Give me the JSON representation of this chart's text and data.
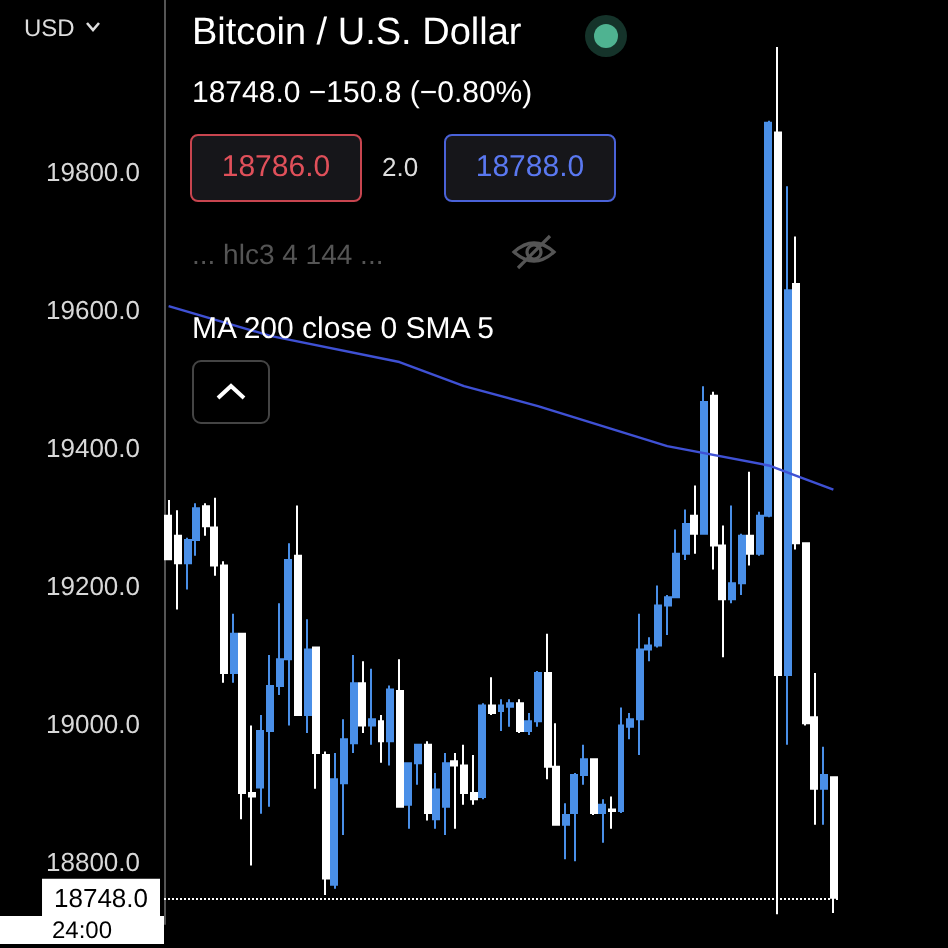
{
  "chart_data": {
    "type": "candlestick",
    "title": "Bitcoin / U.S. Dollar",
    "subtitle": "18748.0 −150.8 (−0.80%)",
    "categories": [
      null,
      null,
      null,
      null,
      null,
      null,
      null,
      null,
      null,
      null,
      null,
      null,
      null,
      null,
      null,
      null,
      null,
      null,
      null,
      null,
      null,
      null,
      null,
      null,
      null,
      null,
      null,
      null,
      null,
      null,
      null,
      null,
      null,
      null,
      null,
      null,
      null,
      null,
      null,
      null,
      null,
      null,
      null,
      null,
      null,
      null,
      null,
      null,
      null,
      null,
      null,
      null,
      null,
      null,
      null,
      null,
      null,
      null,
      null,
      null,
      null,
      null,
      null,
      null,
      null,
      null,
      null,
      null,
      null,
      null,
      null,
      null,
      null
    ],
    "ohlc": [
      [
        19302,
        19325,
        19239,
        19239
      ],
      [
        19273,
        19310,
        19166,
        19233
      ],
      [
        19233,
        19270,
        19195,
        19267
      ],
      [
        19267,
        19320,
        19244,
        19313
      ],
      [
        19316,
        19320,
        19273,
        19287
      ],
      [
        19285,
        19328,
        19215,
        19230
      ],
      [
        19230,
        19236,
        19060,
        19074
      ],
      [
        19074,
        19160,
        19060,
        19131
      ],
      [
        19131,
        19131,
        18862,
        18900
      ],
      [
        18900,
        18998,
        18795,
        18895
      ],
      [
        18908,
        19013,
        18870,
        18990
      ],
      [
        18990,
        19100,
        18880,
        19055
      ],
      [
        19055,
        19175,
        19042,
        19094
      ],
      [
        19094,
        19262,
        18998,
        19238
      ],
      [
        19244,
        19317,
        19013,
        19013
      ],
      [
        19013,
        19152,
        18987,
        19108
      ],
      [
        19111,
        19111,
        18906,
        18958
      ],
      [
        18955,
        18960,
        18752,
        18776
      ],
      [
        18767,
        18958,
        18761,
        18920
      ],
      [
        18914,
        19007,
        18839,
        18978
      ],
      [
        18972,
        19100,
        18958,
        19059
      ],
      [
        19059,
        19091,
        18987,
        18998
      ],
      [
        18998,
        19080,
        18970,
        19007
      ],
      [
        19004,
        19013,
        18944,
        18975
      ],
      [
        18975,
        19056,
        18940,
        19050
      ],
      [
        19048,
        19094,
        18880,
        18880
      ],
      [
        18883,
        18943,
        18848,
        18943
      ],
      [
        18943,
        18970,
        18912,
        18970
      ],
      [
        18970,
        18975,
        18860,
        18871
      ],
      [
        18862,
        18929,
        18848,
        18905
      ],
      [
        18880,
        18958,
        18839,
        18943
      ],
      [
        18946,
        18958,
        18848,
        18940
      ],
      [
        18940,
        18970,
        18883,
        18900
      ],
      [
        18900,
        18955,
        18883,
        18891
      ],
      [
        18894,
        19030,
        18891,
        19027
      ],
      [
        19027,
        19068,
        19013,
        19016
      ],
      [
        19019,
        19036,
        18990,
        19027
      ],
      [
        19025,
        19036,
        18996,
        19030
      ],
      [
        19030,
        19036,
        18987,
        18990
      ],
      [
        18990,
        19016,
        18984,
        19004
      ],
      [
        19004,
        19077,
        18996,
        19074
      ],
      [
        19074,
        19131,
        18920,
        18938
      ],
      [
        18938,
        19001,
        18854,
        18854
      ],
      [
        18854,
        18885,
        18804,
        18868
      ],
      [
        18871,
        18929,
        18801,
        18926
      ],
      [
        18926,
        18970,
        18912,
        18949
      ],
      [
        18949,
        18949,
        18868,
        18871
      ],
      [
        18871,
        18891,
        18828,
        18883
      ],
      [
        18876,
        18895,
        18848,
        18874
      ],
      [
        18874,
        19024,
        18871,
        18998
      ],
      [
        18996,
        19016,
        18978,
        19007
      ],
      [
        19007,
        19160,
        18955,
        19108
      ],
      [
        19108,
        19126,
        19091,
        19114
      ],
      [
        19114,
        19201,
        19111,
        19172
      ],
      [
        19172,
        19187,
        19129,
        19184
      ],
      [
        19184,
        19282,
        19184,
        19247
      ],
      [
        19247,
        19311,
        19238,
        19290
      ],
      [
        19302,
        19346,
        19247,
        19276
      ],
      [
        19276,
        19490,
        19276,
        19467
      ],
      [
        19476,
        19482,
        19224,
        19259
      ],
      [
        19259,
        19288,
        19097,
        19181
      ],
      [
        19181,
        19317,
        19175,
        19204
      ],
      [
        19204,
        19276,
        19187,
        19273
      ],
      [
        19273,
        19366,
        19230,
        19247
      ],
      [
        19247,
        19308,
        19244,
        19302
      ],
      [
        19302,
        19875,
        19300,
        19872
      ],
      [
        19858,
        19982,
        18724,
        19071
      ],
      [
        19071,
        19780,
        18970,
        19629
      ],
      [
        19638,
        19707,
        19253,
        19262
      ],
      [
        19262,
        19262,
        18998,
        19001
      ],
      [
        19010,
        19074,
        18854,
        18906
      ],
      [
        18906,
        18967,
        18854,
        18926
      ],
      [
        18923,
        18923,
        18726,
        18748
      ]
    ],
    "colors": [
      "#ffffff",
      "#ffffff",
      "#4a8fe7",
      "#4a8fe7",
      "#ffffff",
      "#ffffff",
      "#ffffff",
      "#4a8fe7",
      "#ffffff",
      "#ffffff",
      "#4a8fe7",
      "#4a8fe7",
      "#4a8fe7",
      "#4a8fe7",
      "#ffffff",
      "#4a8fe7",
      "#ffffff",
      "#ffffff",
      "#4a8fe7",
      "#4a8fe7",
      "#4a8fe7",
      "#ffffff",
      "#4a8fe7",
      "#ffffff",
      "#4a8fe7",
      "#ffffff",
      "#4a8fe7",
      "#4a8fe7",
      "#ffffff",
      "#4a8fe7",
      "#4a8fe7",
      "#ffffff",
      "#ffffff",
      "#ffffff",
      "#4a8fe7",
      "#ffffff",
      "#4a8fe7",
      "#4a8fe7",
      "#ffffff",
      "#4a8fe7",
      "#4a8fe7",
      "#ffffff",
      "#ffffff",
      "#4a8fe7",
      "#4a8fe7",
      "#4a8fe7",
      "#ffffff",
      "#4a8fe7",
      "#ffffff",
      "#4a8fe7",
      "#4a8fe7",
      "#4a8fe7",
      "#4a8fe7",
      "#4a8fe7",
      "#4a8fe7",
      "#4a8fe7",
      "#4a8fe7",
      "#ffffff",
      "#4a8fe7",
      "#ffffff",
      "#ffffff",
      "#4a8fe7",
      "#4a8fe7",
      "#ffffff",
      "#4a8fe7",
      "#4a8fe7",
      "#ffffff",
      "#4a8fe7",
      "#ffffff",
      "#ffffff",
      "#ffffff",
      "#4a8fe7",
      "#ffffff"
    ],
    "series": [
      {
        "type": "line",
        "color": "#3f51d4",
        "values": [
          19606,
          null,
          null,
          null,
          null,
          null,
          null,
          null,
          null,
          null,
          null,
          19563,
          null,
          null,
          null,
          null,
          null,
          null,
          null,
          null,
          null,
          null,
          null,
          null,
          null,
          19525,
          null,
          null,
          null,
          null,
          null,
          null,
          19490,
          null,
          null,
          null,
          null,
          null,
          null,
          null,
          19461,
          null,
          null,
          null,
          null,
          null,
          null,
          19432,
          null,
          null,
          null,
          null,
          null,
          null,
          19403,
          null,
          null,
          null,
          null,
          null,
          null,
          null,
          null,
          null,
          null,
          19375,
          null,
          null,
          19360,
          null,
          null,
          null,
          19340
        ]
      }
    ],
    "ylim": [
      18710,
      20050
    ],
    "yticks": [
      {
        "value": 18800,
        "label": "18800.0"
      },
      {
        "value": 19000,
        "label": "19000.0"
      },
      {
        "value": 19200,
        "label": "19200.0"
      },
      {
        "value": 19400,
        "label": "19400.0"
      },
      {
        "value": 19600,
        "label": "19600.0"
      },
      {
        "value": 19800,
        "label": "19800.0"
      }
    ],
    "ref_lines": [
      {
        "axis": "y",
        "value": 18748,
        "label": "18748.0",
        "color": "#ffffff",
        "line_style": "dotted"
      }
    ],
    "annotations": [
      "USD",
      "18786.0",
      "2.0",
      "18788.0",
      "... hlc3 4 144 ...",
      "24:00",
      "MA 200 close 0 SMA 5"
    ],
    "marker": "none",
    "grid": false
  }
}
